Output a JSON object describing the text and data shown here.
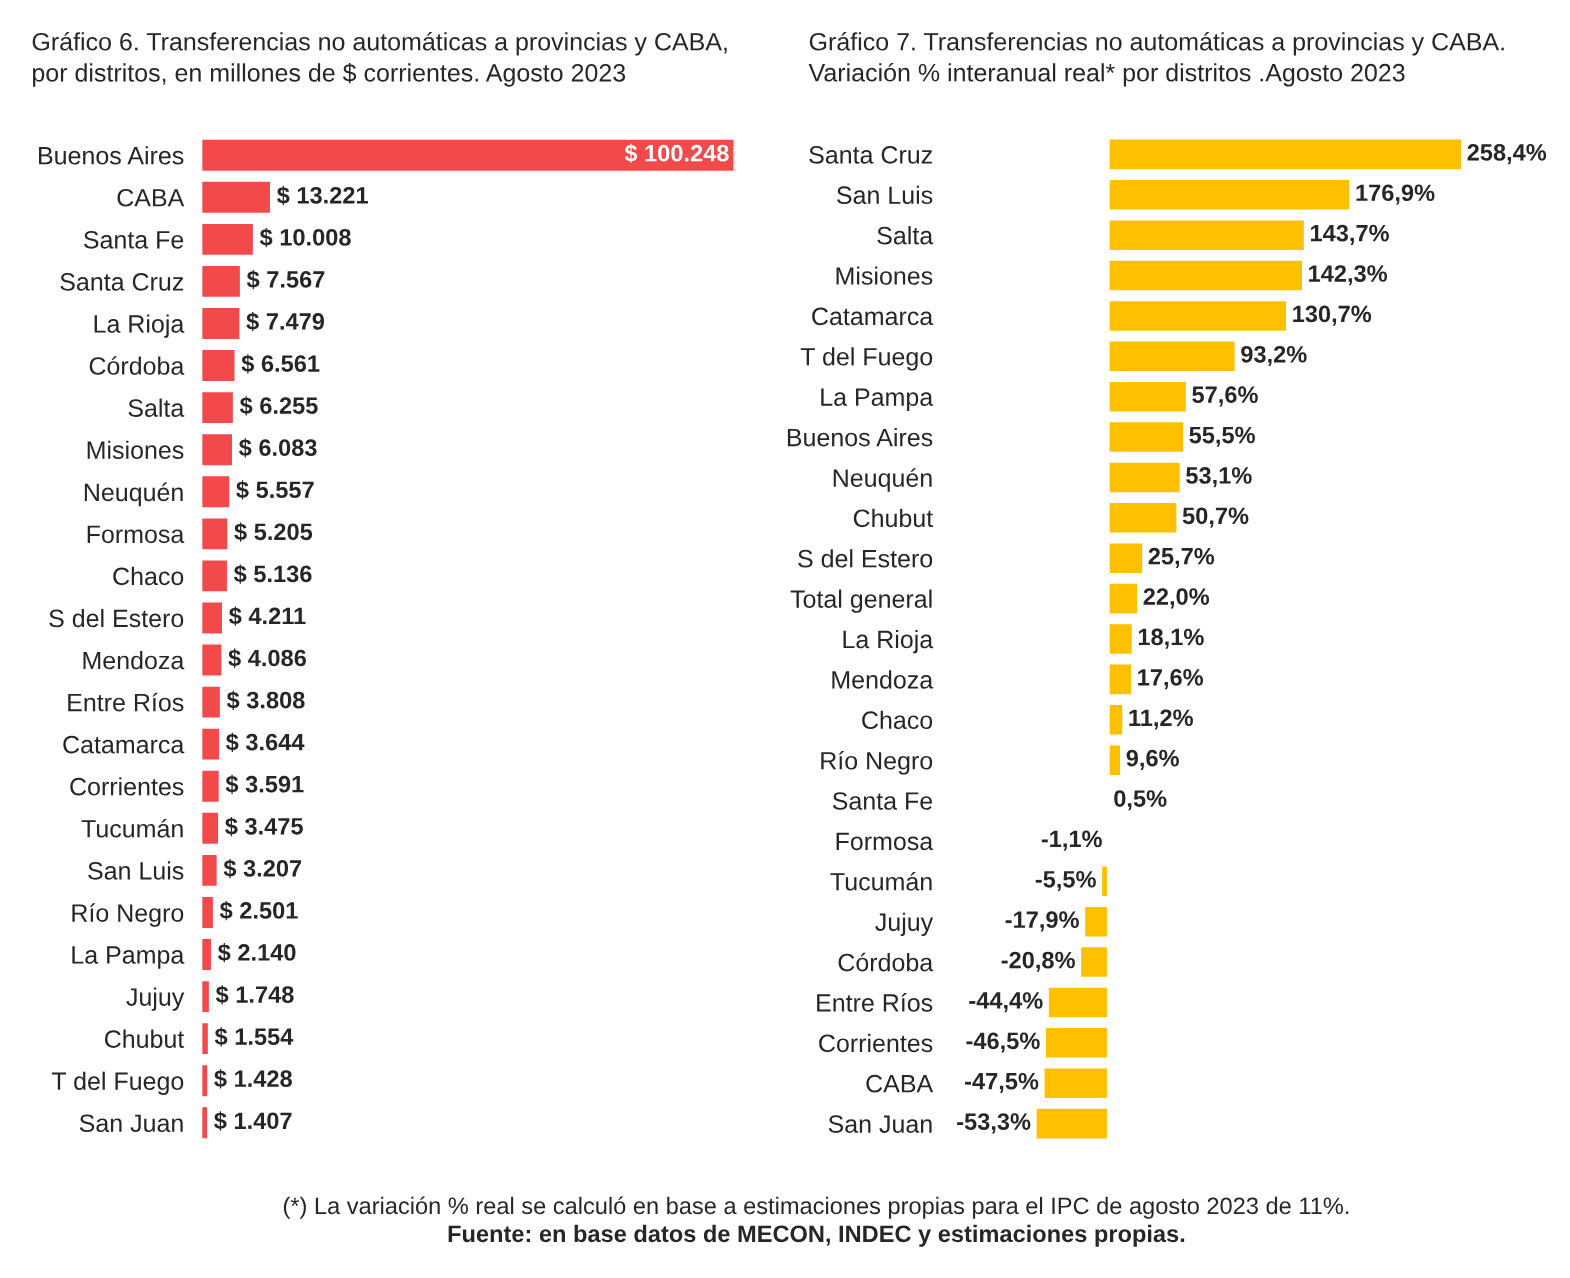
{
  "chart_data": [
    {
      "type": "bar",
      "orientation": "horizontal",
      "title": "Gráfico 6. Transferencias no automáticas a provincias y CABA,\npor distritos, en millones de $ corrientes. Agosto 2023",
      "categories": [
        "Buenos Aires",
        "CABA",
        "Santa Fe",
        "Santa Cruz",
        "La Rioja",
        "Córdoba",
        "Salta",
        "Misiones",
        "Neuquén",
        "Formosa",
        "Chaco",
        "S del Estero",
        "Mendoza",
        "Entre Ríos",
        "Catamarca",
        "Corrientes",
        "Tucumán",
        "San Luis",
        "Río Negro",
        "La Pampa",
        "Jujuy",
        "Chubut",
        "T del Fuego",
        "San Juan"
      ],
      "values": [
        100248,
        13221,
        10008,
        7567,
        7479,
        6561,
        6255,
        6083,
        5557,
        5205,
        5136,
        4211,
        4086,
        3808,
        3644,
        3591,
        3475,
        3207,
        2501,
        2140,
        1748,
        1554,
        1428,
        1407
      ],
      "value_labels": [
        "$ 100.248",
        "$ 13.221",
        "$ 10.008",
        "$ 7.567",
        "$ 7.479",
        "$ 6.561",
        "$ 6.255",
        "$ 6.083",
        "$ 5.557",
        "$ 5.205",
        "$ 5.136",
        "$ 4.211",
        "$ 4.086",
        "$ 3.808",
        "$ 3.644",
        "$ 3.591",
        "$ 3.475",
        "$ 3.207",
        "$ 2.501",
        "$ 2.140",
        "$ 1.748",
        "$ 1.554",
        "$ 1.428",
        "$ 1.407"
      ],
      "color": "#f24a4a",
      "grid": false,
      "legend": false
    },
    {
      "type": "bar",
      "orientation": "horizontal",
      "title": "Gráfico 7. Transferencias no automáticas a provincias y CABA.\nVariación % interanual real* por distritos .Agosto 2023",
      "categories": [
        "Santa Cruz",
        "San Luis",
        "Salta",
        "Misiones",
        "Catamarca",
        "T del Fuego",
        "La Pampa",
        "Buenos Aires",
        "Neuquén",
        "Chubut",
        "S del Estero",
        "Total general",
        "La Rioja",
        "Mendoza",
        "Chaco",
        "Río Negro",
        "Santa Fe",
        "Formosa",
        "Tucumán",
        "Jujuy",
        "Córdoba",
        "Entre Ríos",
        "Corrientes",
        "CABA",
        "San Juan"
      ],
      "values": [
        258.4,
        176.9,
        143.7,
        142.3,
        130.7,
        93.2,
        57.6,
        55.5,
        53.1,
        50.7,
        25.7,
        22.0,
        18.1,
        17.6,
        11.2,
        9.6,
        0.5,
        -1.1,
        -5.5,
        -17.9,
        -20.8,
        -44.4,
        -46.5,
        -47.5,
        -53.3
      ],
      "value_labels": [
        "258,4%",
        "176,9%",
        "143,7%",
        "142,3%",
        "130,7%",
        "93,2%",
        "57,6%",
        "55,5%",
        "53,1%",
        "50,7%",
        "25,7%",
        "22,0%",
        "18,1%",
        "17,6%",
        "11,2%",
        "9,6%",
        "0,5%",
        "-1,1%",
        "-5,5%",
        "-17,9%",
        "-20,8%",
        "-44,4%",
        "-46,5%",
        "-47,5%",
        "-53,3%"
      ],
      "color": "#ffc000",
      "grid": false,
      "legend": false,
      "annotations": [
        "(*) La variación % real se calculó en base a estimaciones propias para el IPC de agosto 2023 de 11%.",
        "Fuente: en base datos de MECON, INDEC y estimaciones propias."
      ]
    }
  ]
}
